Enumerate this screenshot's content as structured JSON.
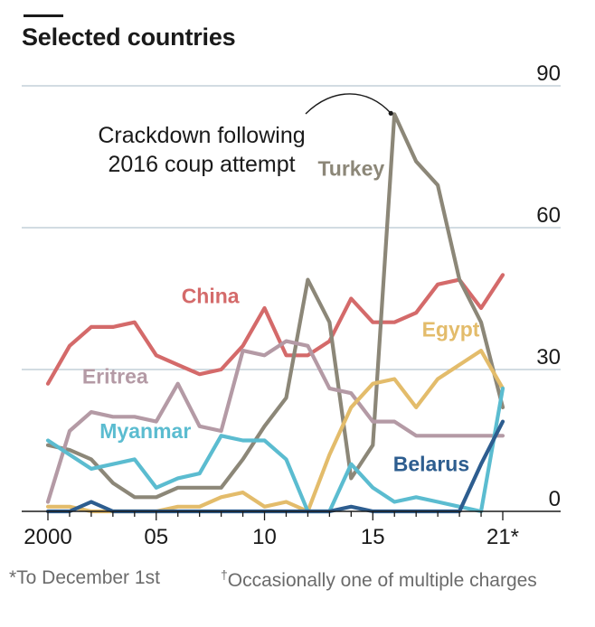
{
  "title": "Selected countries",
  "footnotes": {
    "left": "*To December 1st",
    "right_mark": "†",
    "right": "Occasionally one of multiple charges"
  },
  "annotation": {
    "line1": "Crackdown following",
    "line2": "2016 coup attempt"
  },
  "chart_data": {
    "type": "line",
    "x_ticks": [
      2000,
      2005,
      2010,
      2015,
      2021
    ],
    "x_tick_labels": [
      "2000",
      "05",
      "10",
      "15",
      "21*"
    ],
    "xlim": [
      2000,
      2021
    ],
    "y_ticks": [
      0,
      30,
      60,
      90
    ],
    "ylim": [
      0,
      90
    ],
    "grid": true,
    "series": [
      {
        "name": "China",
        "color": "#d46a6a",
        "x": [
          2000,
          2001,
          2002,
          2003,
          2004,
          2005,
          2006,
          2007,
          2008,
          2009,
          2010,
          2011,
          2012,
          2013,
          2014,
          2015,
          2016,
          2017,
          2018,
          2019,
          2020,
          2021
        ],
        "values": [
          27,
          35,
          39,
          39,
          40,
          33,
          31,
          29,
          30,
          35,
          43,
          33,
          33,
          36,
          45,
          40,
          40,
          42,
          48,
          49,
          43,
          50
        ]
      },
      {
        "name": "Turkey",
        "color": "#8c8778",
        "x": [
          2000,
          2001,
          2002,
          2003,
          2004,
          2005,
          2006,
          2007,
          2008,
          2009,
          2010,
          2011,
          2012,
          2013,
          2014,
          2015,
          2016,
          2017,
          2018,
          2019,
          2020,
          2021
        ],
        "values": [
          14,
          13,
          11,
          6,
          3,
          3,
          5,
          5,
          5,
          11,
          18,
          24,
          49,
          40,
          7,
          14,
          84,
          74,
          69,
          49,
          40,
          22
        ]
      },
      {
        "name": "Eritrea",
        "color": "#b49aa5",
        "x": [
          2000,
          2001,
          2002,
          2003,
          2004,
          2005,
          2006,
          2007,
          2008,
          2009,
          2010,
          2011,
          2012,
          2013,
          2014,
          2015,
          2016,
          2017,
          2018,
          2019,
          2020,
          2021
        ],
        "values": [
          2,
          17,
          21,
          20,
          20,
          19,
          27,
          18,
          17,
          34,
          33,
          36,
          35,
          26,
          25,
          19,
          19,
          16,
          16,
          16,
          16,
          16
        ]
      },
      {
        "name": "Egypt",
        "color": "#e3bc6b",
        "x": [
          2000,
          2001,
          2002,
          2003,
          2004,
          2005,
          2006,
          2007,
          2008,
          2009,
          2010,
          2011,
          2012,
          2013,
          2014,
          2015,
          2016,
          2017,
          2018,
          2019,
          2020,
          2021
        ],
        "values": [
          1,
          1,
          0,
          0,
          0,
          0,
          1,
          1,
          3,
          4,
          1,
          2,
          0,
          12,
          22,
          27,
          28,
          22,
          28,
          31,
          34,
          26
        ]
      },
      {
        "name": "Myanmar",
        "color": "#5bbcd0",
        "x": [
          2000,
          2001,
          2002,
          2003,
          2004,
          2005,
          2006,
          2007,
          2008,
          2009,
          2010,
          2011,
          2012,
          2013,
          2014,
          2015,
          2016,
          2017,
          2018,
          2019,
          2020,
          2021
        ],
        "values": [
          15,
          12,
          9,
          10,
          11,
          5,
          7,
          8,
          16,
          15,
          15,
          11,
          0,
          0,
          10,
          5,
          2,
          3,
          2,
          1,
          0,
          26
        ]
      },
      {
        "name": "Belarus",
        "color": "#2d5d8f",
        "x": [
          2000,
          2001,
          2002,
          2003,
          2004,
          2005,
          2006,
          2007,
          2008,
          2009,
          2010,
          2011,
          2012,
          2013,
          2014,
          2015,
          2016,
          2017,
          2018,
          2019,
          2020,
          2021
        ],
        "values": [
          0,
          0,
          2,
          0,
          0,
          0,
          0,
          0,
          0,
          0,
          0,
          0,
          0,
          0,
          1,
          0,
          0,
          0,
          0,
          0,
          10,
          19
        ]
      }
    ]
  }
}
